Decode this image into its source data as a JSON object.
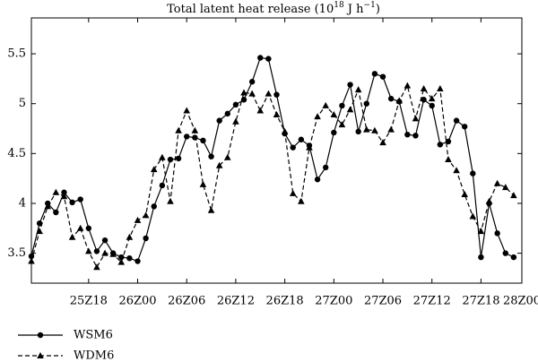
{
  "chart_data": {
    "type": "line",
    "title": [
      "Total latent heat release (10",
      "18",
      " J h",
      "−1",
      ")"
    ],
    "x": [
      11,
      12,
      13,
      14,
      15,
      16,
      17,
      18,
      19,
      20,
      21,
      22,
      23,
      24,
      25,
      26,
      27,
      28,
      29,
      30,
      31,
      32,
      33,
      34,
      35,
      36,
      37,
      38,
      39,
      40,
      41,
      42,
      43,
      44,
      45,
      46,
      47,
      48,
      49,
      50,
      51,
      52,
      53,
      54,
      55,
      56,
      57,
      58,
      59,
      60,
      61,
      62,
      63,
      64,
      65,
      66,
      67,
      68,
      69,
      70
    ],
    "xlim": [
      11,
      71
    ],
    "xticks": [
      {
        "value": 18,
        "label": "25Z18"
      },
      {
        "value": 24,
        "label": "26Z00"
      },
      {
        "value": 30,
        "label": "26Z06"
      },
      {
        "value": 36,
        "label": "26Z12"
      },
      {
        "value": 42,
        "label": "26Z18"
      },
      {
        "value": 48,
        "label": "27Z00"
      },
      {
        "value": 54,
        "label": "27Z06"
      },
      {
        "value": 60,
        "label": "27Z12"
      },
      {
        "value": 66,
        "label": "27Z18"
      },
      {
        "value": 71,
        "label": "28Z00"
      }
    ],
    "ylim": [
      3.2,
      5.86
    ],
    "yticks": [
      3.5,
      4.0,
      4.5,
      5.0,
      5.5
    ],
    "grid": false,
    "legend": "below",
    "series": [
      {
        "name": "WSM6",
        "color": "#000000",
        "linestyle": "solid",
        "marker": "circle",
        "values": [
          3.47,
          3.8,
          4.0,
          3.91,
          4.11,
          4.01,
          4.04,
          3.75,
          3.52,
          3.63,
          3.5,
          3.46,
          3.45,
          3.42,
          3.65,
          3.97,
          4.18,
          4.44,
          4.45,
          4.67,
          4.66,
          4.63,
          4.47,
          4.83,
          4.9,
          4.99,
          5.04,
          5.22,
          5.46,
          5.45,
          5.09,
          4.7,
          4.56,
          4.64,
          4.58,
          4.24,
          4.36,
          4.71,
          4.98,
          5.19,
          4.72,
          5.0,
          5.3,
          5.27,
          5.05,
          5.02,
          4.69,
          4.68,
          5.04,
          4.98,
          4.59,
          4.62,
          4.83,
          4.77,
          4.3,
          3.46,
          4.0,
          3.7,
          3.5,
          3.46
        ]
      },
      {
        "name": "WDM6",
        "color": "#000000",
        "linestyle": "dashed",
        "marker": "triangle",
        "values": [
          3.42,
          3.72,
          3.97,
          4.11,
          4.07,
          3.66,
          3.75,
          3.52,
          3.36,
          3.5,
          3.49,
          3.41,
          3.66,
          3.83,
          3.88,
          4.34,
          4.46,
          4.02,
          4.73,
          4.93,
          4.73,
          4.19,
          3.93,
          4.38,
          4.46,
          4.82,
          5.11,
          5.1,
          4.93,
          5.1,
          4.89,
          4.72,
          4.1,
          4.02,
          4.56,
          4.87,
          4.98,
          4.89,
          4.79,
          4.94,
          5.14,
          4.74,
          4.73,
          4.61,
          4.74,
          5.03,
          5.18,
          4.85,
          5.15,
          5.05,
          5.15,
          4.44,
          4.33,
          4.09,
          3.87,
          3.72,
          4.02,
          4.2,
          4.16,
          4.08
        ]
      }
    ]
  }
}
